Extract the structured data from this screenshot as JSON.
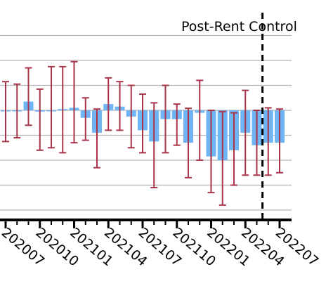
{
  "chart_data": {
    "type": "bar",
    "title": "",
    "xlabel": "",
    "ylabel": "",
    "annotation": "Post-Rent Control",
    "event_after_bar_index": 22,
    "tick_labels": [
      "202007",
      "202010",
      "202101",
      "202104",
      "202107",
      "202110",
      "202201",
      "202204",
      "202207"
    ],
    "tick_bar_index": [
      0,
      3,
      6,
      9,
      12,
      15,
      18,
      21,
      24
    ],
    "ylim": [
      -4.1,
      3.4
    ],
    "grid": true,
    "bar_color": "#6fb4f5",
    "error_color": "#a8354a",
    "values": [
      0,
      0,
      0.35,
      -0.05,
      0,
      0.05,
      0.1,
      -0.3,
      -0.9,
      0.25,
      0.15,
      -0.25,
      -0.8,
      -1.25,
      -0.35,
      -0.35,
      -1.3,
      -0.1,
      -1.85,
      -2.0,
      -1.6,
      -0.9,
      -1.4,
      -1.3,
      -1.3
    ],
    "error_low": [
      -1.25,
      -1.1,
      -0.6,
      -1.6,
      -1.5,
      -1.7,
      -1.3,
      -1.2,
      -2.3,
      -0.8,
      -0.8,
      -1.5,
      -1.7,
      -3.1,
      -1.7,
      -1.4,
      -2.7,
      -2.0,
      -3.3,
      -3.8,
      -3.0,
      -2.6,
      -2.6,
      -2.6,
      -2.5
    ],
    "error_high": [
      1.15,
      1.05,
      1.7,
      0.85,
      1.75,
      1.75,
      1.95,
      0.5,
      0.05,
      1.3,
      1.15,
      1.0,
      0.65,
      0.3,
      1.0,
      0.25,
      0.08,
      1.2,
      0.0,
      -0.05,
      -0.1,
      0.8,
      0.0,
      0.1,
      0.05
    ]
  }
}
